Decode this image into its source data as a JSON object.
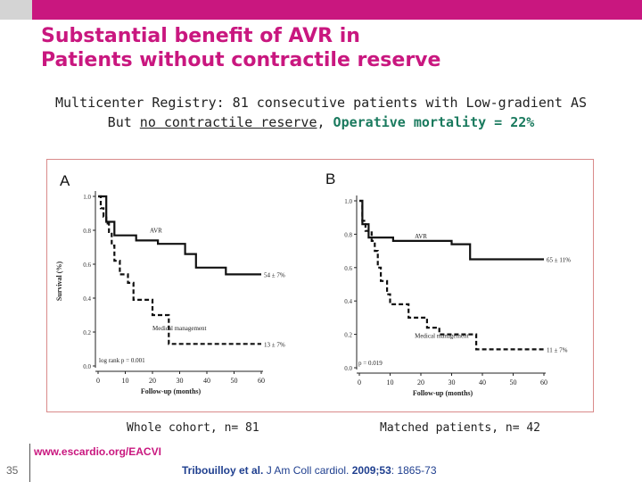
{
  "header": {
    "title_line1": "Substantial benefit of AVR in",
    "title_line2": "Patients without contractile reserve"
  },
  "subtitle": {
    "line1": "Multicenter Registry: 81 consecutive patients with Low-gradient AS",
    "line2_prefix": "But ",
    "line2_underlined": "no contractile reserve",
    "line2_comma": ",",
    "line2_highlight": "Operative mortality = 22%"
  },
  "colors": {
    "brand": "#c9177f",
    "highlight": "#1a7a5e",
    "citation": "#1f3f8f"
  },
  "chart_data": [
    {
      "type": "line",
      "panel_label": "A",
      "ylabel": "Survival (%)",
      "xlabel": "Follow-up (months)",
      "x_ticks": [
        "0",
        "10",
        "20",
        "30",
        "40",
        "50",
        "60"
      ],
      "y_ticks": [
        "1.0",
        "0.8",
        "0.6",
        "0.4",
        "0.2",
        "0.0"
      ],
      "xlim": [
        0,
        60
      ],
      "ylim": [
        0,
        1.0
      ],
      "annotation": "log rank p = 0.001",
      "series": [
        {
          "name": "AVR",
          "style": "solid",
          "end_label": "54 ± 7%",
          "points": [
            [
              0,
              1.0
            ],
            [
              3,
              1.0
            ],
            [
              3,
              0.85
            ],
            [
              6,
              0.85
            ],
            [
              6,
              0.77
            ],
            [
              14,
              0.77
            ],
            [
              14,
              0.74
            ],
            [
              22,
              0.74
            ],
            [
              22,
              0.72
            ],
            [
              32,
              0.72
            ],
            [
              32,
              0.66
            ],
            [
              36,
              0.66
            ],
            [
              36,
              0.58
            ],
            [
              47,
              0.58
            ],
            [
              47,
              0.54
            ],
            [
              60,
              0.54
            ]
          ]
        },
        {
          "name": "Medical management",
          "style": "dashed",
          "end_label": "13 ± 7%",
          "points": [
            [
              0,
              1.0
            ],
            [
              1,
              1.0
            ],
            [
              1,
              0.93
            ],
            [
              2,
              0.93
            ],
            [
              2,
              0.88
            ],
            [
              3,
              0.88
            ],
            [
              3,
              0.84
            ],
            [
              4,
              0.84
            ],
            [
              4,
              0.79
            ],
            [
              5,
              0.79
            ],
            [
              5,
              0.71
            ],
            [
              6,
              0.71
            ],
            [
              6,
              0.62
            ],
            [
              8,
              0.62
            ],
            [
              8,
              0.54
            ],
            [
              11,
              0.54
            ],
            [
              11,
              0.49
            ],
            [
              13,
              0.49
            ],
            [
              13,
              0.39
            ],
            [
              20,
              0.39
            ],
            [
              20,
              0.3
            ],
            [
              26,
              0.3
            ],
            [
              26,
              0.13
            ],
            [
              60,
              0.13
            ]
          ]
        }
      ]
    },
    {
      "type": "line",
      "panel_label": "B",
      "ylabel": "",
      "xlabel": "Follow-up (months)",
      "x_ticks": [
        "0",
        "10",
        "20",
        "30",
        "40",
        "50",
        "60"
      ],
      "y_ticks": [
        "1.0",
        "0.8",
        "0.6",
        "0.4",
        "0.2",
        "0.0"
      ],
      "xlim": [
        0,
        60
      ],
      "ylim": [
        0,
        1.0
      ],
      "annotation": "p = 0.019",
      "series": [
        {
          "name": "AVR",
          "style": "solid",
          "end_label": "65 ± 11%",
          "points": [
            [
              0,
              1.0
            ],
            [
              1,
              1.0
            ],
            [
              1,
              0.86
            ],
            [
              3,
              0.86
            ],
            [
              3,
              0.78
            ],
            [
              11,
              0.78
            ],
            [
              11,
              0.76
            ],
            [
              30,
              0.76
            ],
            [
              30,
              0.74
            ],
            [
              36,
              0.74
            ],
            [
              36,
              0.65
            ],
            [
              60,
              0.65
            ]
          ]
        },
        {
          "name": "Medical management",
          "style": "dashed",
          "end_label": "11 ± 7%",
          "points": [
            [
              0,
              1.0
            ],
            [
              1,
              1.0
            ],
            [
              1,
              0.88
            ],
            [
              2,
              0.88
            ],
            [
              2,
              0.82
            ],
            [
              4,
              0.82
            ],
            [
              4,
              0.76
            ],
            [
              5,
              0.76
            ],
            [
              5,
              0.7
            ],
            [
              6,
              0.7
            ],
            [
              6,
              0.6
            ],
            [
              7,
              0.6
            ],
            [
              7,
              0.52
            ],
            [
              9,
              0.52
            ],
            [
              9,
              0.44
            ],
            [
              10,
              0.44
            ],
            [
              10,
              0.38
            ],
            [
              16,
              0.38
            ],
            [
              16,
              0.3
            ],
            [
              22,
              0.3
            ],
            [
              22,
              0.24
            ],
            [
              26,
              0.24
            ],
            [
              26,
              0.2
            ],
            [
              38,
              0.2
            ],
            [
              38,
              0.11
            ],
            [
              60,
              0.11
            ]
          ]
        }
      ]
    }
  ],
  "captions": {
    "left": "Whole cohort, n= 81",
    "right": "Matched patients, n= 42"
  },
  "footer": {
    "page_number": "35",
    "website": "www.escardio.org/EACVI",
    "citation_authors": "Tribouilloy et al.",
    "citation_journal": " J Am Coll cardiol. ",
    "citation_year_vol": "2009;53",
    "citation_pages": ": 1865-73"
  }
}
